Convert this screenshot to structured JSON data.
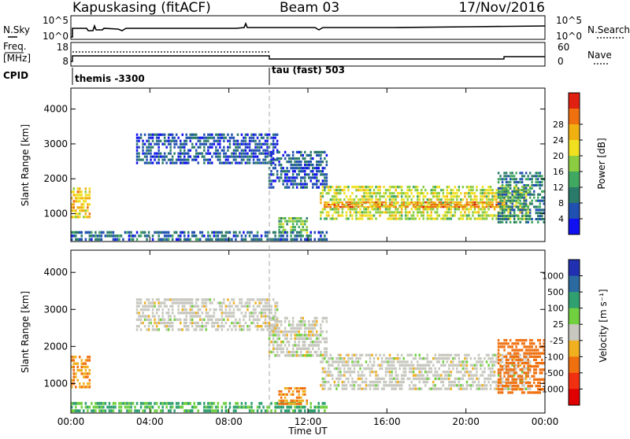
{
  "header": {
    "station": "Kapuskasing (fitACF)",
    "beam": "Beam 03",
    "date": "17/Nov/2016"
  },
  "summary": {
    "nsky_label": "N.Sky",
    "nsky_ticks": [
      "10^5",
      "10^0"
    ],
    "nsearch_label": "N.Search",
    "nsearch_ticks": [
      "10^5",
      "10^0"
    ],
    "freq_label_1": "Freq.",
    "freq_label_2": "[MHz]",
    "freq_ticks": [
      "18",
      "8"
    ],
    "nave_label": "Nave",
    "nave_ticks": [
      "60",
      "0"
    ],
    "cpid_label": "CPID",
    "cpid_segments": [
      "themis -3300",
      "tau (fast) 503"
    ]
  },
  "chart_data": [
    {
      "type": "heatmap",
      "panel": "power",
      "ylabel": "Slant Range [km]",
      "xlabel": "",
      "ylim": [
        200,
        4600
      ],
      "xlim": [
        "00:00",
        "24:00"
      ],
      "yticks": [
        "1000",
        "2000",
        "3000",
        "4000"
      ],
      "colorbar": {
        "label": "Power [dB]",
        "ticks": [
          "4",
          "8",
          "12",
          "16",
          "20",
          "24",
          "28"
        ],
        "colors": [
          "#1010f0",
          "#2050b0",
          "#2a7a6a",
          "#40a860",
          "#8ccc40",
          "#f0e020",
          "#f0b010",
          "#f07010",
          "#e02010"
        ]
      },
      "echo_regions": [
        {
          "t": [
            0.0,
            1.0
          ],
          "range": [
            850,
            1750
          ],
          "dB": 24
        },
        {
          "t": [
            3.3,
            10.5
          ],
          "range": [
            2400,
            3300
          ],
          "dB": 6
        },
        {
          "t": [
            10.0,
            13.0
          ],
          "range": [
            1700,
            2800
          ],
          "dB": 6
        },
        {
          "t": [
            12.6,
            23.3
          ],
          "range": [
            800,
            1800
          ],
          "dB": 20
        },
        {
          "t": [
            12.8,
            22.0
          ],
          "range": [
            1150,
            1350
          ],
          "dB": 28
        },
        {
          "t": [
            0.0,
            13.0
          ],
          "range": [
            200,
            500
          ],
          "dB": 8
        },
        {
          "t": [
            10.5,
            12.0
          ],
          "range": [
            400,
            900
          ],
          "dB": 16
        },
        {
          "t": [
            21.6,
            24.0
          ],
          "range": [
            700,
            2200
          ],
          "dB": 10
        }
      ]
    },
    {
      "type": "heatmap",
      "panel": "velocity",
      "ylabel": "Slant Range [km]",
      "xlabel": "Time UT",
      "ylim": [
        200,
        4600
      ],
      "xlim": [
        "00:00",
        "24:00"
      ],
      "yticks": [
        "1000",
        "2000",
        "3000",
        "4000"
      ],
      "xticks": [
        "00:00",
        "04:00",
        "08:00",
        "12:00",
        "16:00",
        "20:00",
        "00:00"
      ],
      "colorbar": {
        "label": "Velocity [m s⁻¹]",
        "ticks": [
          "1000",
          "500",
          "100",
          "25",
          "-25",
          "-100",
          "-500",
          "-1000"
        ],
        "colors": [
          "#2030b0",
          "#2a6aa0",
          "#30a070",
          "#70d040",
          "#c8c8c0",
          "#f0b020",
          "#f07010",
          "#f03010",
          "#e00000"
        ]
      },
      "echo_regions": [
        {
          "t": [
            0.0,
            1.0
          ],
          "range": [
            850,
            1750
          ],
          "v": -100
        },
        {
          "t": [
            3.3,
            10.5
          ],
          "range": [
            2400,
            3300
          ],
          "v": 0
        },
        {
          "t": [
            10.0,
            13.0
          ],
          "range": [
            1700,
            2800
          ],
          "v": 0
        },
        {
          "t": [
            12.6,
            23.3
          ],
          "range": [
            800,
            1800
          ],
          "v": 0
        },
        {
          "t": [
            0.0,
            13.0
          ],
          "range": [
            200,
            500
          ],
          "v": 100
        },
        {
          "t": [
            10.5,
            12.0
          ],
          "range": [
            400,
            900
          ],
          "v": -100
        },
        {
          "t": [
            21.6,
            24.0
          ],
          "range": [
            700,
            2200
          ],
          "v": -300
        }
      ]
    }
  ]
}
